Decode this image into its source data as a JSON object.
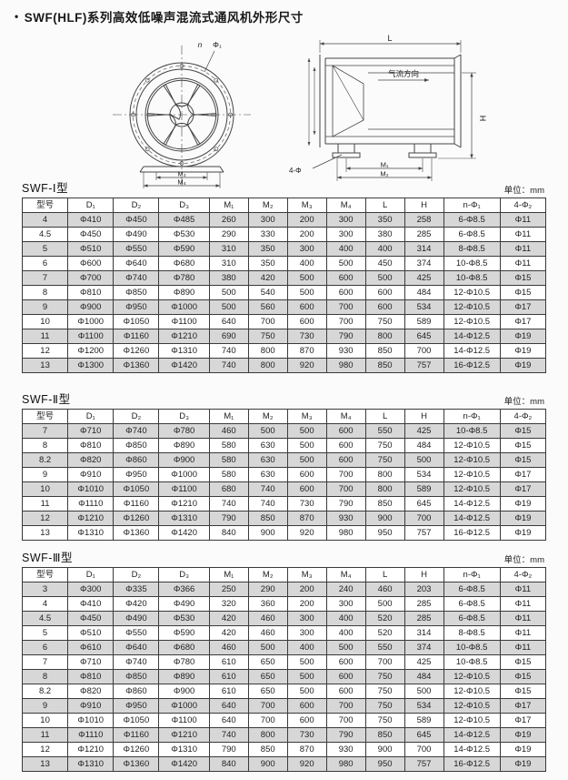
{
  "page": {
    "bullet": "•",
    "title": "SWF(HLF)系列高效低噪声混流式通风机外形尺寸"
  },
  "colors": {
    "row_shade": "#d7d7d7",
    "table_border": "#333333",
    "background": "#fbfbfb"
  },
  "diagram": {
    "front_view": {
      "n_label": "n",
      "phi1_label": "Φ₁",
      "m3_label": "M₃",
      "m4_label": "M₄"
    },
    "side_view": {
      "l_label": "L",
      "airflow_label": "气流方向",
      "h_label": "H",
      "bolt_label": "4-Φ",
      "m1_label": "M₁",
      "m2_label": "M₂"
    }
  },
  "tables": [
    {
      "name": "SWF-Ⅰ型",
      "unit": "单位：mm",
      "headers": [
        "型号",
        "D₁",
        "D₂",
        "D₃",
        "M₁",
        "M₂",
        "M₃",
        "M₄",
        "L",
        "H",
        "n-Φ₁",
        "4-Φ₂"
      ],
      "rows": [
        [
          "4",
          "Φ410",
          "Φ450",
          "Φ485",
          "260",
          "300",
          "200",
          "300",
          "350",
          "258",
          "6-Φ8.5",
          "Φ11"
        ],
        [
          "4.5",
          "Φ450",
          "Φ490",
          "Φ530",
          "290",
          "330",
          "200",
          "300",
          "380",
          "285",
          "6-Φ8.5",
          "Φ11"
        ],
        [
          "5",
          "Φ510",
          "Φ550",
          "Φ590",
          "310",
          "350",
          "300",
          "400",
          "400",
          "314",
          "8-Φ8.5",
          "Φ11"
        ],
        [
          "6",
          "Φ600",
          "Φ640",
          "Φ680",
          "310",
          "350",
          "400",
          "500",
          "450",
          "374",
          "10-Φ8.5",
          "Φ11"
        ],
        [
          "7",
          "Φ700",
          "Φ740",
          "Φ780",
          "380",
          "420",
          "500",
          "600",
          "500",
          "425",
          "10-Φ8.5",
          "Φ15"
        ],
        [
          "8",
          "Φ810",
          "Φ850",
          "Φ890",
          "500",
          "540",
          "500",
          "600",
          "600",
          "484",
          "12-Φ10.5",
          "Φ15"
        ],
        [
          "9",
          "Φ900",
          "Φ950",
          "Φ1000",
          "500",
          "560",
          "600",
          "700",
          "600",
          "534",
          "12-Φ10.5",
          "Φ17"
        ],
        [
          "10",
          "Φ1000",
          "Φ1050",
          "Φ1100",
          "640",
          "700",
          "600",
          "700",
          "750",
          "589",
          "12-Φ10.5",
          "Φ17"
        ],
        [
          "11",
          "Φ1100",
          "Φ1160",
          "Φ1210",
          "690",
          "750",
          "730",
          "790",
          "800",
          "645",
          "14-Φ12.5",
          "Φ19"
        ],
        [
          "12",
          "Φ1200",
          "Φ1260",
          "Φ1310",
          "740",
          "800",
          "870",
          "930",
          "850",
          "700",
          "14-Φ12.5",
          "Φ19"
        ],
        [
          "13",
          "Φ1300",
          "Φ1360",
          "Φ1420",
          "740",
          "800",
          "920",
          "980",
          "850",
          "757",
          "16-Φ12.5",
          "Φ19"
        ]
      ]
    },
    {
      "name": "SWF-Ⅱ型",
      "unit": "单位：mm",
      "headers": [
        "型号",
        "D₁",
        "D₂",
        "D₃",
        "M₁",
        "M₂",
        "M₃",
        "M₄",
        "L",
        "H",
        "n-Φ₁",
        "4-Φ₂"
      ],
      "rows": [
        [
          "7",
          "Φ710",
          "Φ740",
          "Φ780",
          "460",
          "500",
          "500",
          "600",
          "550",
          "425",
          "10-Φ8.5",
          "Φ15"
        ],
        [
          "8",
          "Φ810",
          "Φ850",
          "Φ890",
          "580",
          "630",
          "500",
          "600",
          "750",
          "484",
          "12-Φ10.5",
          "Φ15"
        ],
        [
          "8.2",
          "Φ820",
          "Φ860",
          "Φ900",
          "580",
          "630",
          "500",
          "600",
          "750",
          "500",
          "12-Φ10.5",
          "Φ15"
        ],
        [
          "9",
          "Φ910",
          "Φ950",
          "Φ1000",
          "580",
          "630",
          "600",
          "700",
          "800",
          "534",
          "12-Φ10.5",
          "Φ17"
        ],
        [
          "10",
          "Φ1010",
          "Φ1050",
          "Φ1100",
          "680",
          "740",
          "600",
          "700",
          "800",
          "589",
          "12-Φ10.5",
          "Φ17"
        ],
        [
          "11",
          "Φ1110",
          "Φ1160",
          "Φ1210",
          "740",
          "740",
          "730",
          "790",
          "850",
          "645",
          "14-Φ12.5",
          "Φ19"
        ],
        [
          "12",
          "Φ1210",
          "Φ1260",
          "Φ1310",
          "790",
          "850",
          "870",
          "930",
          "900",
          "700",
          "14-Φ12.5",
          "Φ19"
        ],
        [
          "13",
          "Φ1310",
          "Φ1360",
          "Φ1420",
          "840",
          "900",
          "920",
          "980",
          "950",
          "757",
          "16-Φ12.5",
          "Φ19"
        ]
      ]
    },
    {
      "name": "SWF-Ⅲ型",
      "unit": "单位：mm",
      "headers": [
        "型号",
        "D₁",
        "D₂",
        "D₃",
        "M₁",
        "M₂",
        "M₃",
        "M₄",
        "L",
        "H",
        "n-Φ₁",
        "4-Φ₂"
      ],
      "rows": [
        [
          "3",
          "Φ300",
          "Φ335",
          "Φ366",
          "250",
          "290",
          "200",
          "240",
          "460",
          "203",
          "6-Φ8.5",
          "Φ11"
        ],
        [
          "4",
          "Φ410",
          "Φ420",
          "Φ490",
          "320",
          "360",
          "200",
          "300",
          "500",
          "285",
          "6-Φ8.5",
          "Φ11"
        ],
        [
          "4.5",
          "Φ450",
          "Φ490",
          "Φ530",
          "420",
          "460",
          "300",
          "400",
          "520",
          "285",
          "6-Φ8.5",
          "Φ11"
        ],
        [
          "5",
          "Φ510",
          "Φ550",
          "Φ590",
          "420",
          "460",
          "300",
          "400",
          "520",
          "314",
          "8-Φ8.5",
          "Φ11"
        ],
        [
          "6",
          "Φ610",
          "Φ640",
          "Φ680",
          "460",
          "500",
          "400",
          "500",
          "550",
          "374",
          "10-Φ8.5",
          "Φ11"
        ],
        [
          "7",
          "Φ710",
          "Φ740",
          "Φ780",
          "610",
          "650",
          "500",
          "600",
          "700",
          "425",
          "10-Φ8.5",
          "Φ15"
        ],
        [
          "8",
          "Φ810",
          "Φ850",
          "Φ890",
          "610",
          "650",
          "500",
          "600",
          "750",
          "484",
          "12-Φ10.5",
          "Φ15"
        ],
        [
          "8.2",
          "Φ820",
          "Φ860",
          "Φ900",
          "610",
          "650",
          "500",
          "600",
          "750",
          "500",
          "12-Φ10.5",
          "Φ15"
        ],
        [
          "9",
          "Φ910",
          "Φ950",
          "Φ1000",
          "640",
          "700",
          "600",
          "700",
          "750",
          "534",
          "12-Φ10.5",
          "Φ17"
        ],
        [
          "10",
          "Φ1010",
          "Φ1050",
          "Φ1100",
          "640",
          "700",
          "600",
          "700",
          "750",
          "589",
          "12-Φ10.5",
          "Φ17"
        ],
        [
          "11",
          "Φ1110",
          "Φ1160",
          "Φ1210",
          "740",
          "800",
          "730",
          "790",
          "850",
          "645",
          "14-Φ12.5",
          "Φ19"
        ],
        [
          "12",
          "Φ1210",
          "Φ1260",
          "Φ1310",
          "790",
          "850",
          "870",
          "930",
          "900",
          "700",
          "14-Φ12.5",
          "Φ19"
        ],
        [
          "13",
          "Φ1310",
          "Φ1360",
          "Φ1420",
          "840",
          "900",
          "920",
          "980",
          "950",
          "757",
          "16-Φ12.5",
          "Φ19"
        ]
      ]
    }
  ]
}
